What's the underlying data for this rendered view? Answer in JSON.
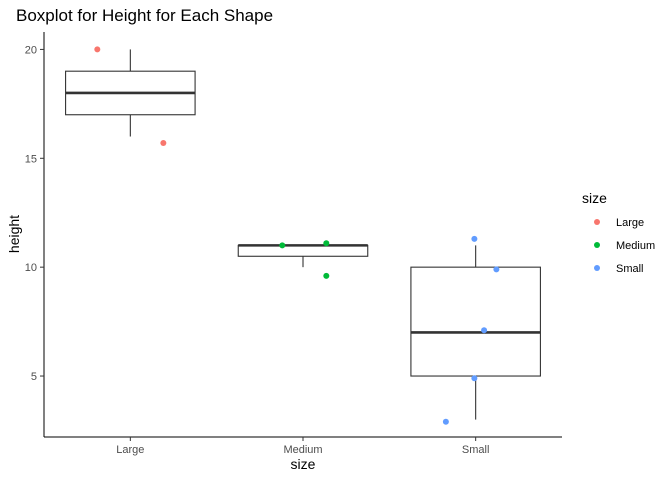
{
  "chart_data": {
    "type": "boxplot",
    "title": "Boxplot for Height for Each Shape",
    "xlabel": "size",
    "ylabel": "height",
    "categories": [
      "Large",
      "Medium",
      "Small"
    ],
    "ylim": [
      2.2,
      20.8
    ],
    "yticks": [
      5,
      10,
      15,
      20
    ],
    "boxes": [
      {
        "category": "Large",
        "min": 16,
        "q1": 17,
        "median": 18,
        "q3": 19,
        "max": 20
      },
      {
        "category": "Medium",
        "min": 10,
        "q1": 10.5,
        "median": 11,
        "q3": 11,
        "max": 11
      },
      {
        "category": "Small",
        "min": 3,
        "q1": 5,
        "median": 7,
        "q3": 10,
        "max": 11
      }
    ],
    "points": [
      {
        "category": "Large",
        "jitter": -0.51,
        "y": 20.0
      },
      {
        "category": "Large",
        "jitter": 0.51,
        "y": 15.7
      },
      {
        "category": "Medium",
        "jitter": -0.32,
        "y": 11.0
      },
      {
        "category": "Medium",
        "jitter": 0.36,
        "y": 11.1
      },
      {
        "category": "Medium",
        "jitter": 0.36,
        "y": 9.6
      },
      {
        "category": "Small",
        "jitter": -0.46,
        "y": 2.9
      },
      {
        "category": "Small",
        "jitter": -0.02,
        "y": 11.3
      },
      {
        "category": "Small",
        "jitter": 0.32,
        "y": 9.9
      },
      {
        "category": "Small",
        "jitter": 0.13,
        "y": 7.1
      },
      {
        "category": "Small",
        "jitter": -0.02,
        "y": 4.9
      }
    ],
    "legend": {
      "title": "size",
      "position": "right",
      "items": [
        {
          "label": "Large",
          "color": "#F8766D"
        },
        {
          "label": "Medium",
          "color": "#00BA38"
        },
        {
          "label": "Small",
          "color": "#619CFF"
        }
      ]
    },
    "grid": false
  }
}
